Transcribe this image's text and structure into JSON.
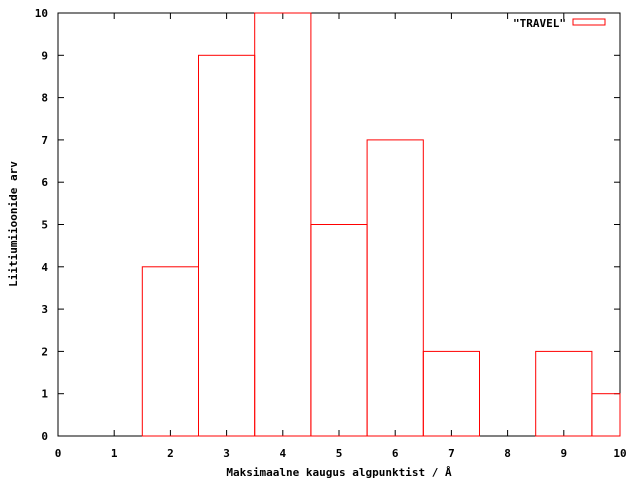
{
  "chart_data": {
    "type": "bar",
    "bins": [
      {
        "x0": 1.5,
        "x1": 2.5,
        "value": 4
      },
      {
        "x0": 2.5,
        "x1": 3.5,
        "value": 9
      },
      {
        "x0": 3.5,
        "x1": 4.5,
        "value": 10
      },
      {
        "x0": 4.5,
        "x1": 5.5,
        "value": 5
      },
      {
        "x0": 5.5,
        "x1": 6.5,
        "value": 7
      },
      {
        "x0": 6.5,
        "x1": 7.5,
        "value": 2
      },
      {
        "x0": 8.5,
        "x1": 9.5,
        "value": 2
      },
      {
        "x0": 9.5,
        "x1": 10,
        "value": 1
      }
    ],
    "series": [
      {
        "name": "\"TRAVEL\"",
        "color": "#ff0000"
      }
    ],
    "xlabel": "Maksimaalne kaugus algpunktist / Å",
    "ylabel": "Liitiumiioonide arv",
    "xlim": [
      0,
      10
    ],
    "ylim": [
      0,
      10
    ],
    "xticks": [
      "0",
      "1",
      "2",
      "3",
      "4",
      "5",
      "6",
      "7",
      "8",
      "9",
      "10"
    ],
    "yticks": [
      "0",
      "1",
      "2",
      "3",
      "4",
      "5",
      "6",
      "7",
      "8",
      "9",
      "10"
    ],
    "legend_position": "top-right",
    "grid": false
  }
}
